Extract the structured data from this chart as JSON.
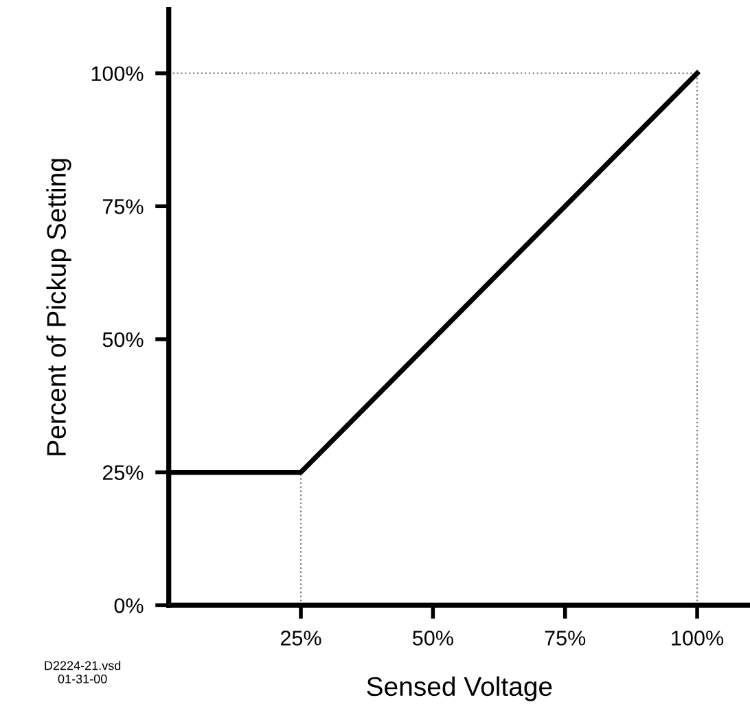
{
  "chart_data": {
    "type": "line",
    "xlabel": "Sensed Voltage",
    "ylabel": "Percent of Pickup Setting",
    "x": [
      0,
      25,
      100
    ],
    "series": [
      {
        "color": "#000000",
        "values": [
          25,
          25,
          100
        ]
      }
    ],
    "xlim": [
      0,
      110
    ],
    "ylim": [
      0,
      112
    ],
    "xticks": [
      {
        "value": 25,
        "label": "25%"
      },
      {
        "value": 50,
        "label": "50%"
      },
      {
        "value": 75,
        "label": "75%"
      },
      {
        "value": 100,
        "label": "100%"
      }
    ],
    "yticks": [
      {
        "value": 0,
        "label": "0%"
      },
      {
        "value": 25,
        "label": "25%"
      },
      {
        "value": 50,
        "label": "50%"
      },
      {
        "value": 75,
        "label": "75%"
      },
      {
        "value": 100,
        "label": "100%"
      }
    ],
    "ref_lines": [
      {
        "axis": "y",
        "value": 100,
        "color": "#808080",
        "line_style": "dotted"
      },
      {
        "axis": "x",
        "value": 100,
        "color": "#808080",
        "line_style": "dotted"
      },
      {
        "axis": "x",
        "value": 25,
        "color": "#808080",
        "line_style": "dotted"
      }
    ],
    "annotations": [
      "D2224-21.vsd\n01-31-00"
    ],
    "grid": false,
    "legend": false,
    "marker": "none",
    "line_style": "solid"
  }
}
